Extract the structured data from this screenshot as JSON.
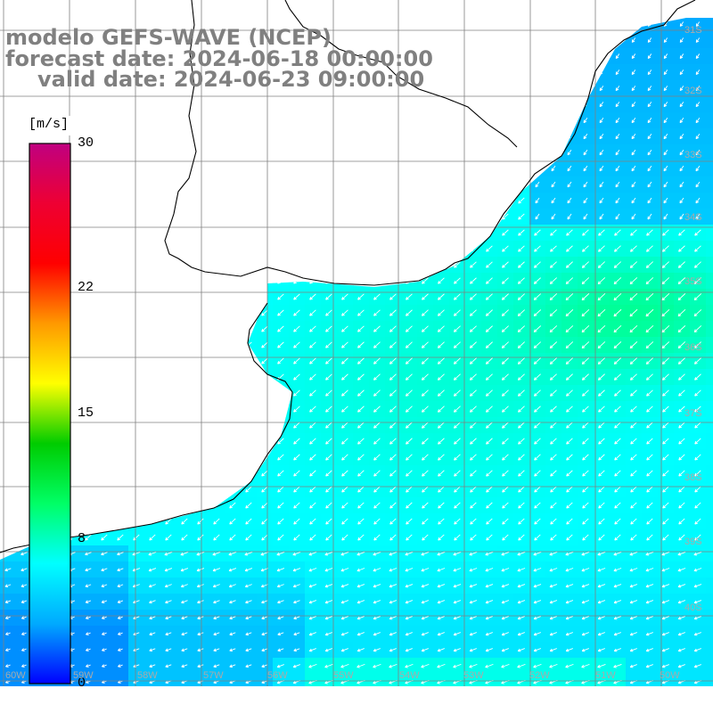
{
  "title": {
    "line1": "modelo GEFS-WAVE (NCEP)",
    "line2": "forecast date: 2024-06-18 00:00:00",
    "line3": "valid date: 2024-06-23 09:00:00"
  },
  "colorbar": {
    "unit": "[m/s]",
    "min": 0,
    "max": 30,
    "ticks": [
      {
        "label": "30",
        "value": 30
      },
      {
        "label": "22",
        "value": 22
      },
      {
        "label": "15",
        "value": 15
      },
      {
        "label": "8",
        "value": 8
      },
      {
        "label": "0",
        "value": 0
      }
    ],
    "colors": [
      "#0000ff",
      "#00aaff",
      "#00ffff",
      "#00ff66",
      "#00cc00",
      "#ffff00",
      "#ff9900",
      "#ff0000",
      "#ee0033",
      "#c00080"
    ]
  },
  "grid": {
    "lat_labels": [
      "31S",
      "32S",
      "33S",
      "34S",
      "35S",
      "36S",
      "37S",
      "38S",
      "39S",
      "40S"
    ],
    "lon_labels": [
      "60W",
      "59W",
      "58W",
      "57W",
      "56W",
      "55W",
      "54W",
      "53W",
      "52W",
      "51W",
      "50W"
    ]
  },
  "map": {
    "land_color": "#ffffff",
    "coast_color": "#000000",
    "grid_color": "#808080",
    "wind_arrow_color": "#ffffff"
  }
}
